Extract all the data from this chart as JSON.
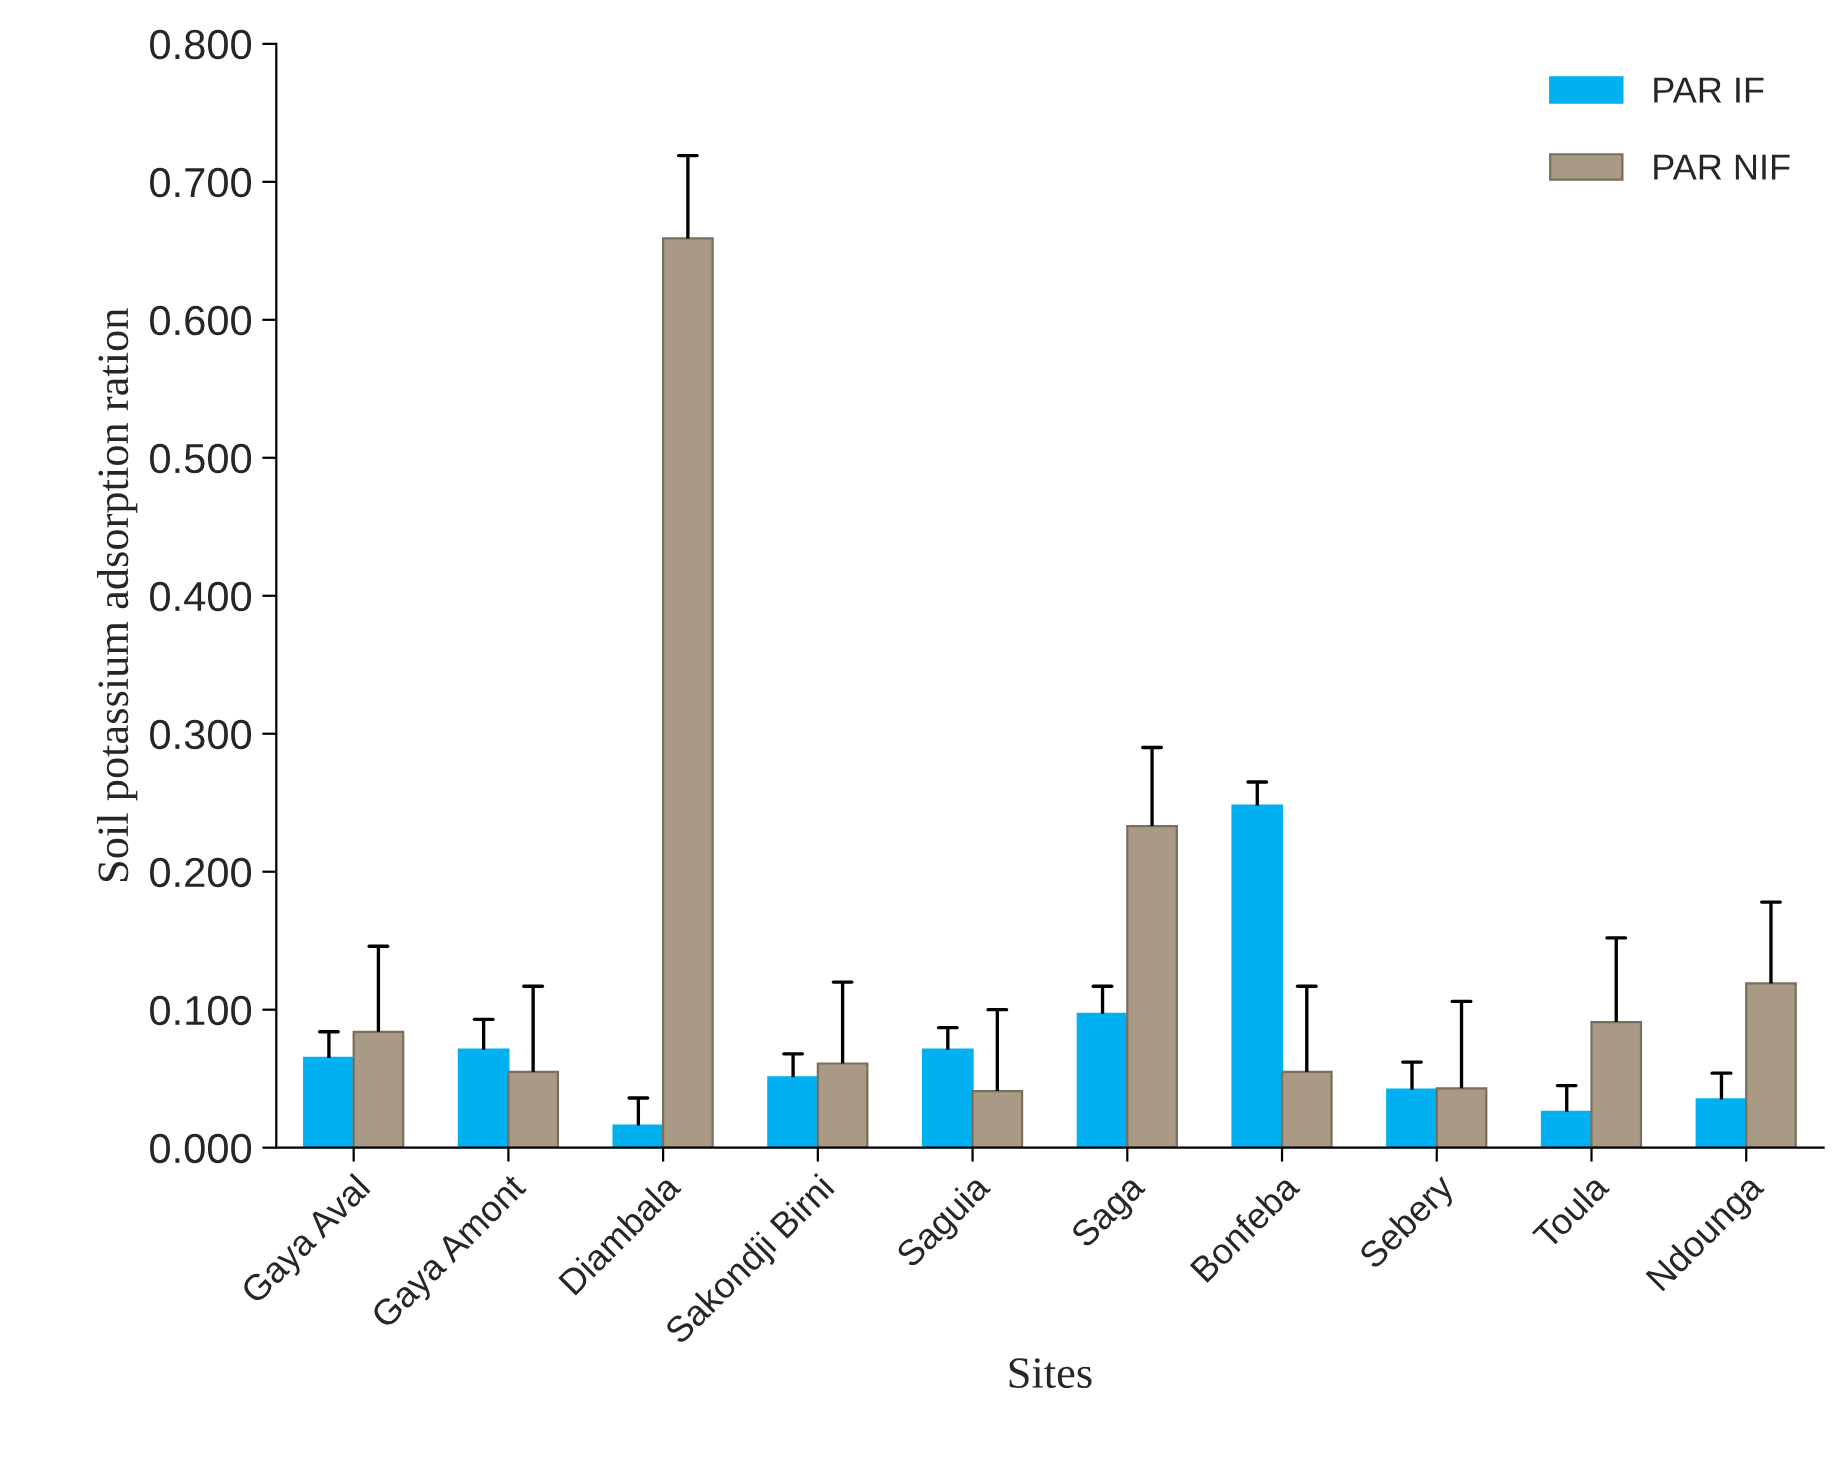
{
  "chart_data": {
    "type": "bar",
    "xlabel": "Sites",
    "ylabel": "Soil potassium adsorption ration",
    "categories": [
      "Gaya Aval",
      "Gaya Amont",
      "Diambala",
      "Sakondji Birni",
      "Saguia",
      "Saga",
      "Bonfeba",
      "Sebery",
      "Toula",
      "Ndounga"
    ],
    "series": [
      {
        "name": "PAR IF",
        "color": "#00b0f0",
        "values": [
          0.065,
          0.071,
          0.016,
          0.051,
          0.071,
          0.097,
          0.248,
          0.042,
          0.026,
          0.035
        ],
        "errors": [
          [
            0.065,
            0.084
          ],
          [
            0.071,
            0.093
          ],
          [
            0.016,
            0.036
          ],
          [
            0.051,
            0.068
          ],
          [
            0.071,
            0.087
          ],
          [
            0.097,
            0.117
          ],
          [
            0.248,
            0.265
          ],
          [
            0.042,
            0.062
          ],
          [
            0.026,
            0.045
          ],
          [
            0.035,
            0.054
          ]
        ]
      },
      {
        "name": "PAR NIF",
        "color": "#a89a84",
        "values": [
          0.084,
          0.055,
          0.659,
          0.061,
          0.041,
          0.233,
          0.055,
          0.043,
          0.091,
          0.119
        ],
        "errors": [
          [
            0.084,
            0.146
          ],
          [
            0.055,
            0.117
          ],
          [
            0.659,
            0.719
          ],
          [
            0.061,
            0.12
          ],
          [
            0.041,
            0.1
          ],
          [
            0.233,
            0.29
          ],
          [
            0.055,
            0.117
          ],
          [
            0.043,
            0.106
          ],
          [
            0.091,
            0.152
          ],
          [
            0.119,
            0.178
          ]
        ]
      }
    ],
    "ylim": [
      0,
      0.8
    ],
    "yticks": [
      {
        "value": 0,
        "label": "0.000"
      },
      {
        "value": 0.1,
        "label": "0.100"
      },
      {
        "value": 0.2,
        "label": "0.200"
      },
      {
        "value": 0.3,
        "label": "0.300"
      },
      {
        "value": 0.4,
        "label": "0.400"
      },
      {
        "value": 0.5,
        "label": "0.500"
      },
      {
        "value": 0.6,
        "label": "0.600"
      },
      {
        "value": 0.7,
        "label": "0.700"
      },
      {
        "value": 0.8,
        "label": "0.800"
      }
    ],
    "grid": false,
    "legend": "top right"
  }
}
